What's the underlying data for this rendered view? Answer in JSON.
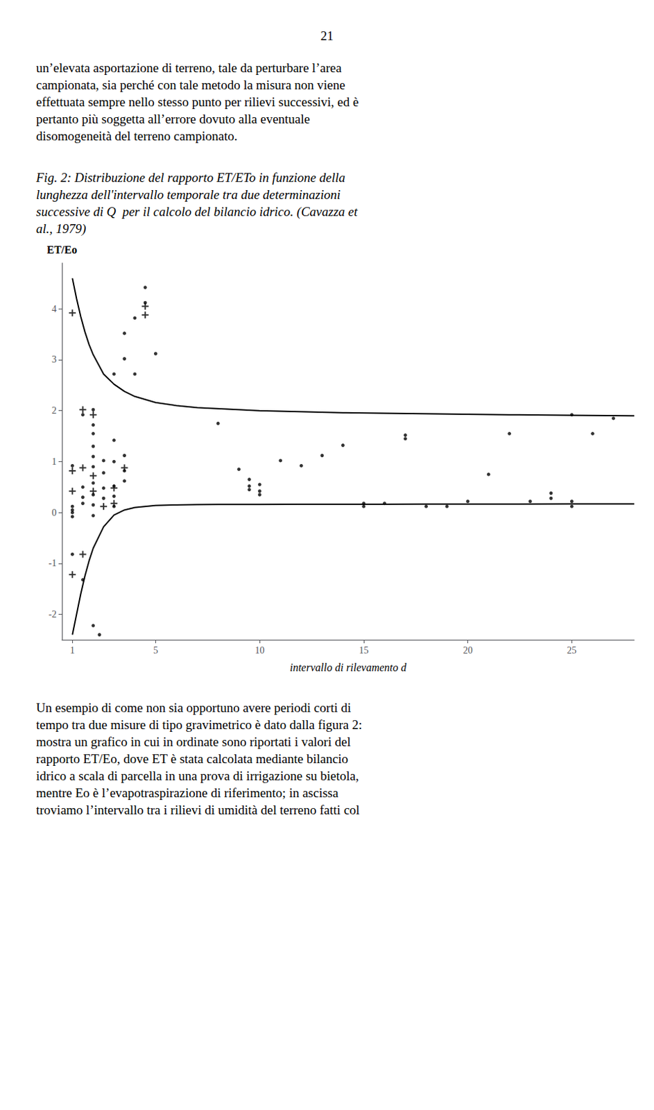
{
  "chart_data": {
    "type": "scatter",
    "title": "21",
    "annotations": {
      "paragraph1": [
        "un’elevata asportazione di terreno, tale da perturbare l’area",
        "campionata, sia perché con tale metodo la misura non viene",
        "effettuata sempre nello stesso punto per rilievi successivi, ed è",
        "pertanto più soggetta all’errore dovuto alla eventuale",
        "disomogeneità del terreno campionato."
      ],
      "caption": [
        "Fig. 2: Distribuzione del rapporto ET/ETo in funzione della",
        "lunghezza dell'intervallo temporale tra due determinazioni",
        "successive di Q  per il calcolo del bilancio idrico. (Cavazza et",
        "al., 1979)"
      ],
      "paragraph2": [
        "Un esempio di come non sia opportuno avere periodi corti di",
        "tempo tra due misure di tipo gravimetrico è dato dalla figura 2:",
        "mostra un grafico in cui in ordinate sono riportati i valori del",
        "rapporto ET/Eo, dove ET è stata calcolata mediante bilancio",
        "idrico a scala di parcella in una prova di irrigazione su bietola,",
        "mentre Eo è l’evapotraspirazione di riferimento; in ascissa",
        "troviamo l’intervallo tra i rilievi di umidità del terreno fatti col"
      ]
    },
    "ylabel": "ET/Eo",
    "xlabel": "intervallo di rilevamento d",
    "xlim": [
      0.5,
      28
    ],
    "ylim": [
      -2.5,
      4.9
    ],
    "xticks": [
      1,
      5,
      10,
      15,
      20,
      25
    ],
    "yticks": [
      -2,
      -1,
      0,
      1,
      2,
      3,
      4
    ],
    "grid": false,
    "series": [
      {
        "type": "scatter",
        "marker": "dot",
        "color": "#000000",
        "x": [
          1.0,
          1.0,
          1.0,
          1.0,
          1.5,
          1.5,
          1.5,
          2.0,
          2.0,
          2.0,
          2.0,
          2.0,
          2.0,
          2.0,
          2.0,
          2.0,
          2.5,
          2.5,
          2.5,
          2.5,
          3.0,
          3.0,
          3.0,
          3.0,
          3.0,
          3.5,
          3.5,
          3.5,
          3.5,
          3.5,
          4.0,
          4.0,
          4.5,
          4.5,
          5.0,
          1.0,
          1.5,
          2.0,
          1.0,
          1.5,
          2.0,
          3.0,
          8.0,
          9.0,
          9.5,
          9.5,
          9.5,
          10.0,
          10.0,
          10.0,
          11.0,
          12.0,
          13.0,
          14.0,
          15.0,
          15.0,
          16.0,
          17.0,
          17.0,
          18.0,
          19.0,
          20.0,
          21.0,
          22.0,
          23.0,
          24.0,
          24.0,
          25.0,
          25.0,
          25.0,
          26.0,
          27.0,
          2.3
        ],
        "values": [
          0.05,
          0.12,
          0.0,
          -0.08,
          0.3,
          0.5,
          0.18,
          0.35,
          0.9,
          1.1,
          1.3,
          1.55,
          1.72,
          0.58,
          0.15,
          -0.06,
          0.48,
          0.78,
          1.02,
          0.28,
          0.52,
          1.0,
          1.42,
          0.32,
          0.12,
          0.82,
          1.12,
          0.62,
          3.52,
          3.02,
          3.82,
          2.72,
          4.12,
          4.42,
          3.12,
          0.92,
          1.92,
          2.02,
          -0.82,
          -1.32,
          -2.22,
          2.72,
          1.75,
          0.85,
          0.52,
          0.65,
          0.45,
          0.55,
          0.42,
          0.35,
          1.02,
          0.92,
          1.12,
          1.32,
          0.18,
          0.12,
          0.18,
          1.45,
          1.52,
          0.12,
          0.12,
          0.22,
          0.75,
          1.55,
          0.22,
          0.28,
          0.38,
          0.12,
          0.22,
          1.92,
          1.55,
          1.85,
          -2.4
        ]
      },
      {
        "type": "scatter",
        "marker": "plus",
        "color": "#000000",
        "x": [
          1.0,
          1.5,
          2.0,
          2.0,
          3.0,
          3.0,
          1.0,
          1.5,
          4.5,
          4.5,
          1.0,
          1.0,
          2.5,
          1.5,
          2.0,
          3.5
        ],
        "values": [
          3.92,
          2.02,
          1.92,
          0.42,
          0.18,
          0.48,
          -1.22,
          -0.82,
          4.05,
          3.88,
          0.82,
          0.42,
          0.12,
          0.88,
          0.72,
          0.88
        ]
      },
      {
        "type": "line",
        "line_style": "solid",
        "color": "#000000",
        "x": [
          1.0,
          1.2,
          1.4,
          1.6,
          1.8,
          2.0,
          2.5,
          3.0,
          3.5,
          4.0,
          5.0,
          6.0,
          7.0,
          8.0,
          10.0,
          12.0,
          14.0,
          16.0,
          18.0,
          20.0,
          22.0,
          25.0,
          28.0
        ],
        "values": [
          4.6,
          4.2,
          3.85,
          3.55,
          3.3,
          3.1,
          2.72,
          2.52,
          2.38,
          2.28,
          2.16,
          2.1,
          2.06,
          2.04,
          2.0,
          1.98,
          1.96,
          1.95,
          1.94,
          1.93,
          1.92,
          1.91,
          1.9
        ]
      },
      {
        "type": "line",
        "line_style": "solid",
        "color": "#000000",
        "x": [
          1.0,
          1.2,
          1.4,
          1.6,
          1.8,
          2.0,
          2.5,
          3.0,
          3.5,
          4.0,
          5.0,
          6.0,
          7.0,
          8.0,
          10.0,
          12.0,
          14.0,
          16.0,
          18.0,
          20.0,
          22.0,
          25.0,
          28.0
        ],
        "values": [
          -2.4,
          -2.0,
          -1.6,
          -1.25,
          -0.95,
          -0.7,
          -0.28,
          -0.05,
          0.05,
          0.1,
          0.14,
          0.15,
          0.155,
          0.158,
          0.16,
          0.162,
          0.163,
          0.164,
          0.165,
          0.166,
          0.167,
          0.168,
          0.169
        ]
      }
    ]
  }
}
